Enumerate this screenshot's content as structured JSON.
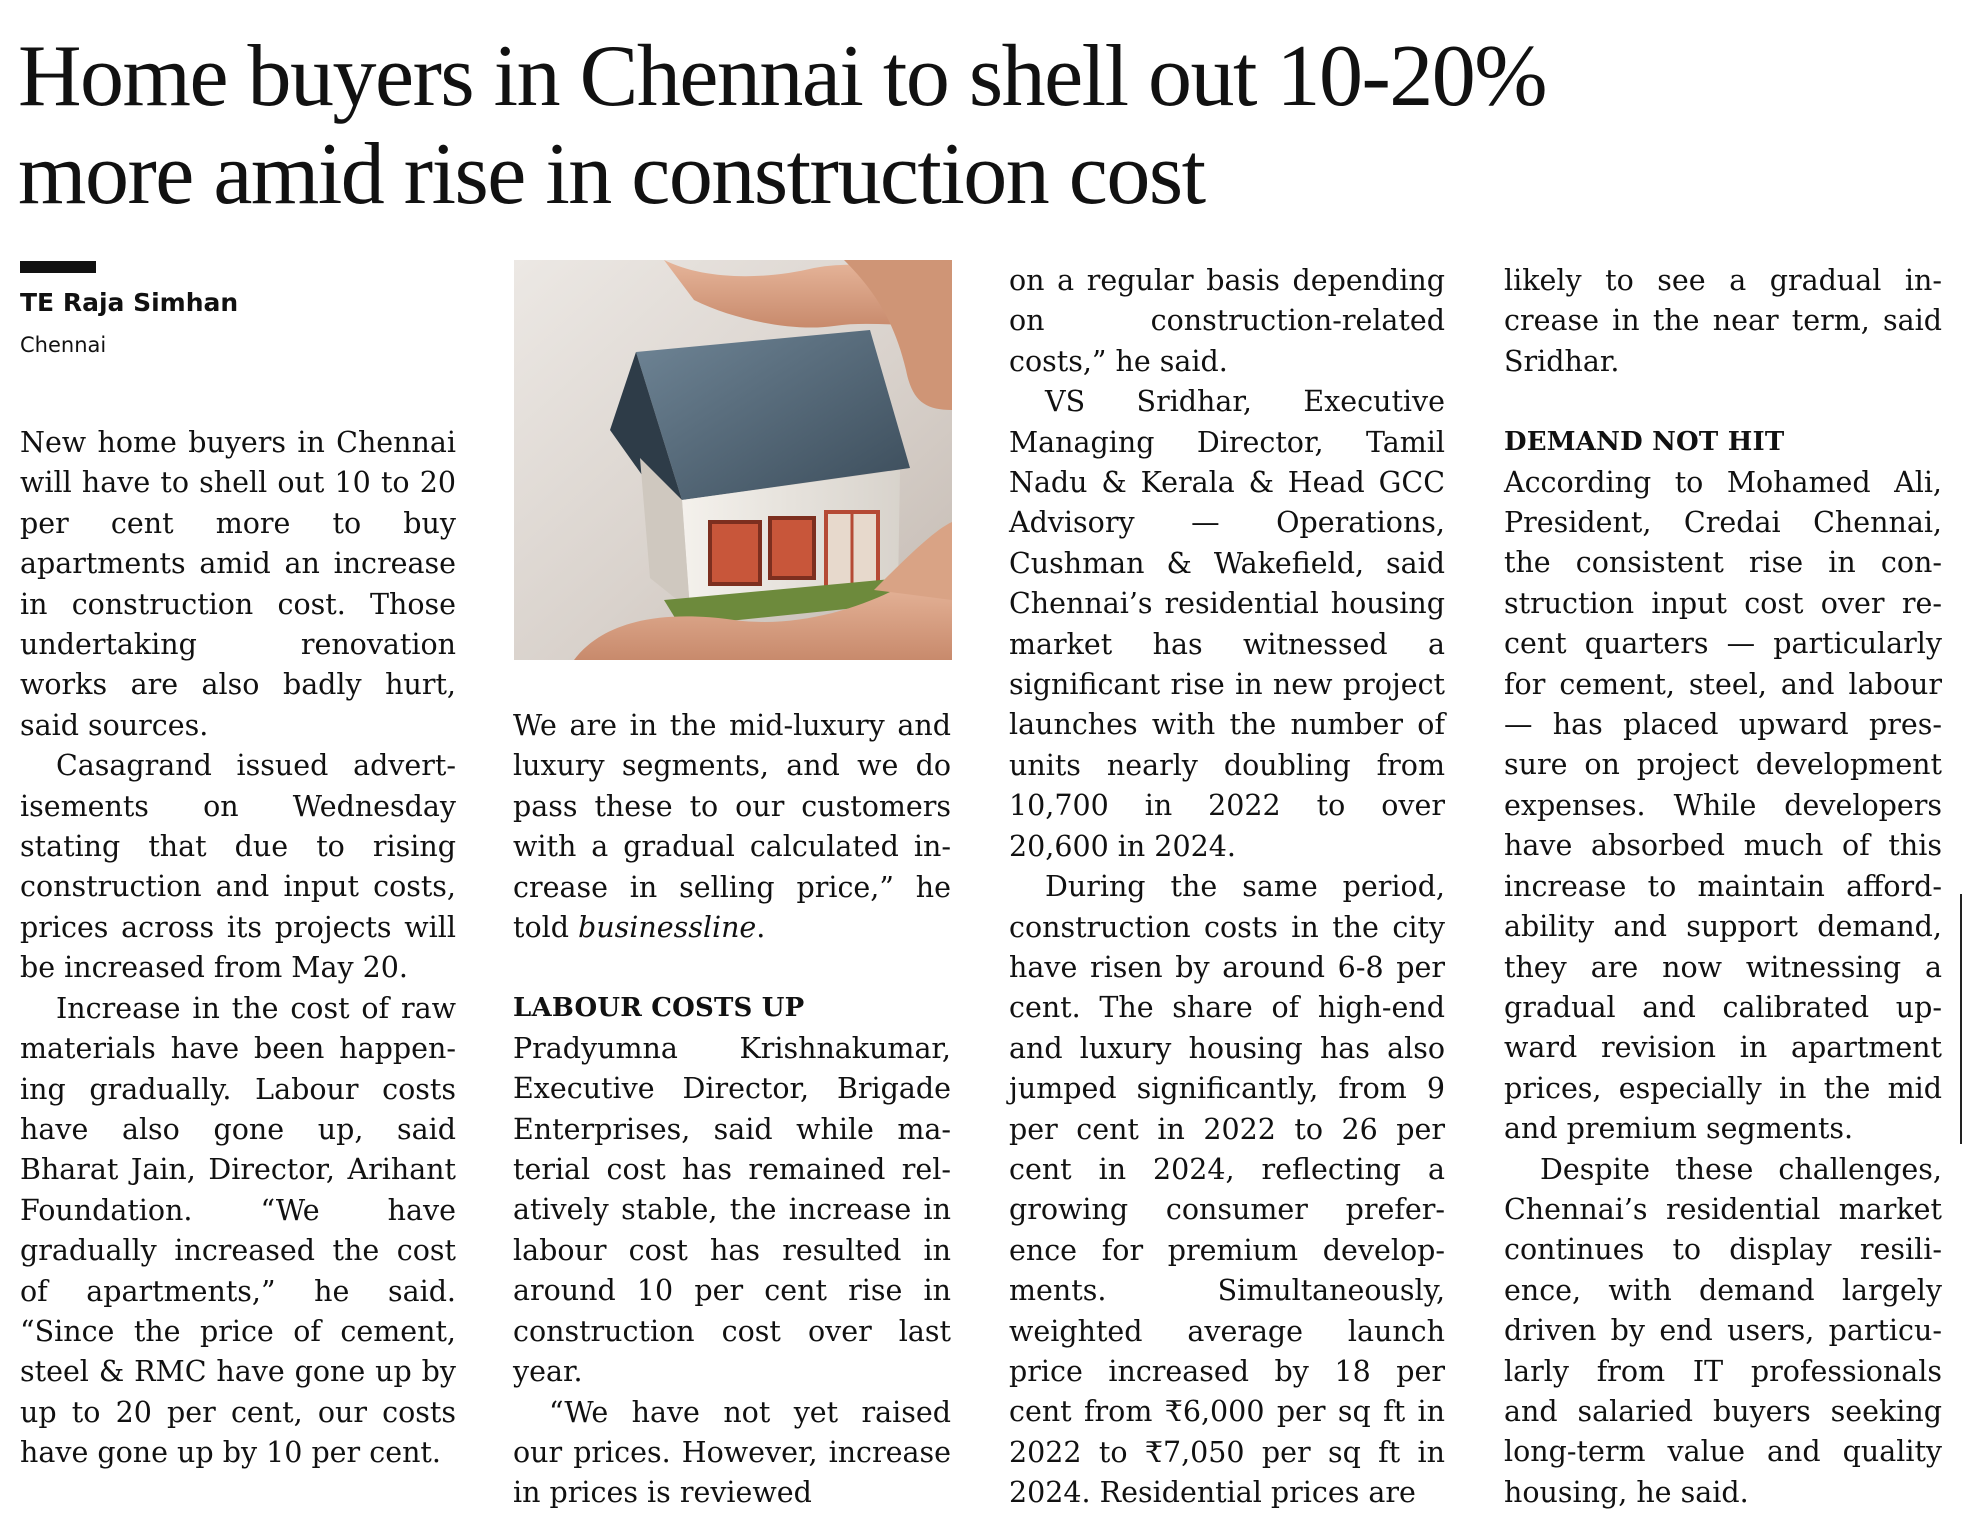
{
  "headline": {
    "line1": "Home buyers in Chennai to shell out 10-20%",
    "line2": "more amid rise in construction cost"
  },
  "byline": {
    "author": "TE Raja Simhan",
    "location": "Chennai"
  },
  "photo": {
    "icon": "house-in-hands-photo"
  },
  "col1": {
    "p1": "New home buyers in Chen­nai will have to shell out 10 to 20 per cent more to buy apartments amid an increase in construction cost. Those undertaking renovation works are also badly hurt, said sources.",
    "p2": "Casagrand issued advert­isements on Wednesday stating that due to rising construction and input costs, prices across its pro­jects will be increased from May 20.",
    "p3": "Increase in the cost of raw materials have been happen­ing gradually. Labour costs have also gone up, said Bharat Jain, Director, Arihant Foundation. “We have gradually increased the cost of apartments,” he said. “Since the price of cement, steel & RMC have gone up by up to 20 per cent, our costs have gone up by 10 per cent."
  },
  "col2": {
    "p1_text": "We are in the mid-luxury and luxury segments, and we do pass these to our customers with a gradual calculated in­crease in selling price,” he told ",
    "p1_italic": "businessline",
    "p1_end": ".",
    "subhead": "LABOUR COSTS UP",
    "p2": "Pradyumna Krishnakumar, Executive Director, Brigade Enterprises, said while ma­terial cost has remained rel­atively stable, the increase in labour cost has resulted in around 10 per cent rise in construction cost over last year.",
    "p3": "“We have not yet raised our prices. However, in­crease in prices is reviewed"
  },
  "col3": {
    "p1": "on a regular basis depending on construction-related costs,” he said.",
    "p2": "VS Sridhar, Executive Managing Director, Tamil Nadu & Kerala & Head GCC Advisory — Operations, Cushman & Wakefield, said Chennai’s residential hous­ing market has witnessed a significant rise in new pro­ject launches with the num­ber of units nearly doubling from 10,700 in 2022 to over 20,600 in 2024.",
    "p3": "During the same period, construction costs in the city have risen by around 6-8 per cent. The share of high-end and luxury housing has also jumped significantly, from 9 per cent in 2022 to 26 per cent in 2024, reflecting a growing consumer prefer­ence for premium develop­ments. Simultaneously, weighted average launch price increased by 18 per cent from ₹6,000 per sq ft in 2022 to ₹7,050 per sq ft in 2024. Residential prices are"
  },
  "col4": {
    "p1": "likely to see a gradual in­crease in the near term, said Sridhar.",
    "subhead": "DEMAND NOT HIT",
    "p2": "According to Mohamed Ali, President, Credai Chennai, the consistent rise in con­struction input cost over re­cent quarters — particularly for cement, steel, and labour — has placed upward pres­sure on project development expenses. While developers have absorbed much of this increase to maintain afford­ability and support demand, they are now witnessing a gradual and calibrated up­ward revision in apartment prices, especially in the mid and premium segments.",
    "p3": "Despite these challenges, Chennai’s residential market continues to display resili­ence, with demand largely driven by end users, particu­larly from IT professionals and salaried buyers seeking long-term value and quality housing, he said."
  },
  "colors": {
    "text": "#111111",
    "background": "#ffffff"
  }
}
